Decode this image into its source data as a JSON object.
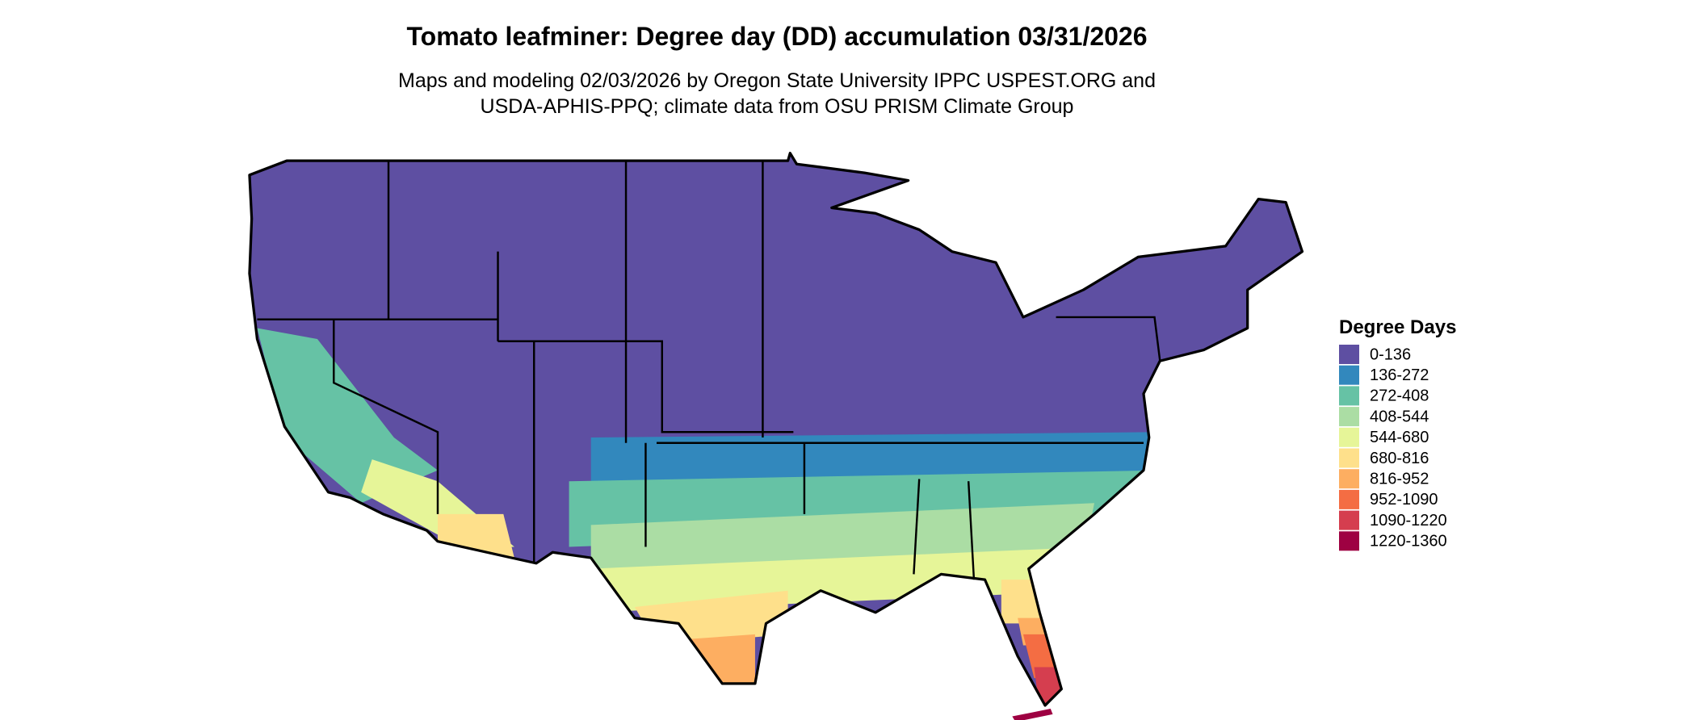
{
  "header": {
    "title": "Tomato leafminer: Degree day (DD) accumulation 03/31/2026",
    "subtitle_lines": [
      "Maps and modeling 02/03/2026 by Oregon State University IPPC USPEST.ORG and",
      "USDA-APHIS-PPQ; climate data from OSU PRISM Climate Group"
    ]
  },
  "legend": {
    "title": "Degree Days",
    "items": [
      {
        "label": "0-136",
        "color": "#5e4fa2"
      },
      {
        "label": "136-272",
        "color": "#3288bd"
      },
      {
        "label": "272-408",
        "color": "#66c2a5"
      },
      {
        "label": "408-544",
        "color": "#abdda4"
      },
      {
        "label": "544-680",
        "color": "#e6f598"
      },
      {
        "label": "680-816",
        "color": "#fee08b"
      },
      {
        "label": "816-952",
        "color": "#fdae61"
      },
      {
        "label": "952-1090",
        "color": "#f46d43"
      },
      {
        "label": "1090-1220",
        "color": "#d53e4f"
      },
      {
        "label": "1220-1360",
        "color": "#9e0142"
      }
    ]
  }
}
